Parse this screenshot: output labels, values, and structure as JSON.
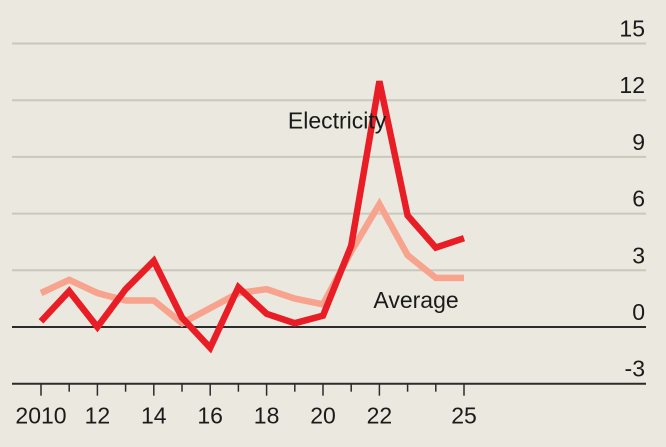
{
  "chart_data": {
    "type": "line",
    "title": "",
    "xlabel": "",
    "ylabel": "",
    "x": [
      2010,
      2011,
      2012,
      2013,
      2014,
      2015,
      2016,
      2017,
      2018,
      2019,
      2020,
      2021,
      2022,
      2023,
      2024,
      2025
    ],
    "xlim": [
      2010,
      2026
    ],
    "ylim": [
      -3,
      15
    ],
    "grid": true,
    "x_ticks": [
      {
        "value": 2010,
        "label": "2010"
      },
      {
        "value": 2012,
        "label": "12"
      },
      {
        "value": 2014,
        "label": "14"
      },
      {
        "value": 2016,
        "label": "16"
      },
      {
        "value": 2018,
        "label": "18"
      },
      {
        "value": 2020,
        "label": "20"
      },
      {
        "value": 2022,
        "label": "22"
      },
      {
        "value": 2025,
        "label": "25"
      }
    ],
    "x_minor_ticks": [
      2011,
      2013,
      2015,
      2017,
      2019,
      2021,
      2023,
      2024
    ],
    "y_ticks": [
      {
        "value": 15,
        "label": "15"
      },
      {
        "value": 12,
        "label": "12"
      },
      {
        "value": 9,
        "label": "9"
      },
      {
        "value": 6,
        "label": "6"
      },
      {
        "value": 3,
        "label": "3"
      },
      {
        "value": 0,
        "label": "0"
      },
      {
        "value": -3,
        "label": "-3"
      }
    ],
    "y_axis_side": "right",
    "series": [
      {
        "name": "Average",
        "color": "#f7a38e",
        "values": [
          1.8,
          2.5,
          1.8,
          1.4,
          1.4,
          0.2,
          1.0,
          1.8,
          2.0,
          1.5,
          1.2,
          4.0,
          6.5,
          3.8,
          2.6,
          2.6
        ],
        "label": {
          "text": "Average",
          "anchor_x": 2023.3,
          "anchor_y": 1.0
        }
      },
      {
        "name": "Electricity",
        "color": "#e91d25",
        "values": [
          0.3,
          1.9,
          0.0,
          2.0,
          3.5,
          0.5,
          -1.1,
          2.1,
          0.7,
          0.2,
          0.6,
          4.3,
          13.0,
          5.9,
          4.2,
          4.7
        ],
        "label": {
          "text": "Electricity",
          "anchor_x": 2020.5,
          "anchor_y": 10.5
        }
      }
    ],
    "legend": "inline"
  },
  "colors": {
    "background": "#ebe9df",
    "gridline": "#c9c8bd",
    "axis": "#2b2b2b"
  }
}
